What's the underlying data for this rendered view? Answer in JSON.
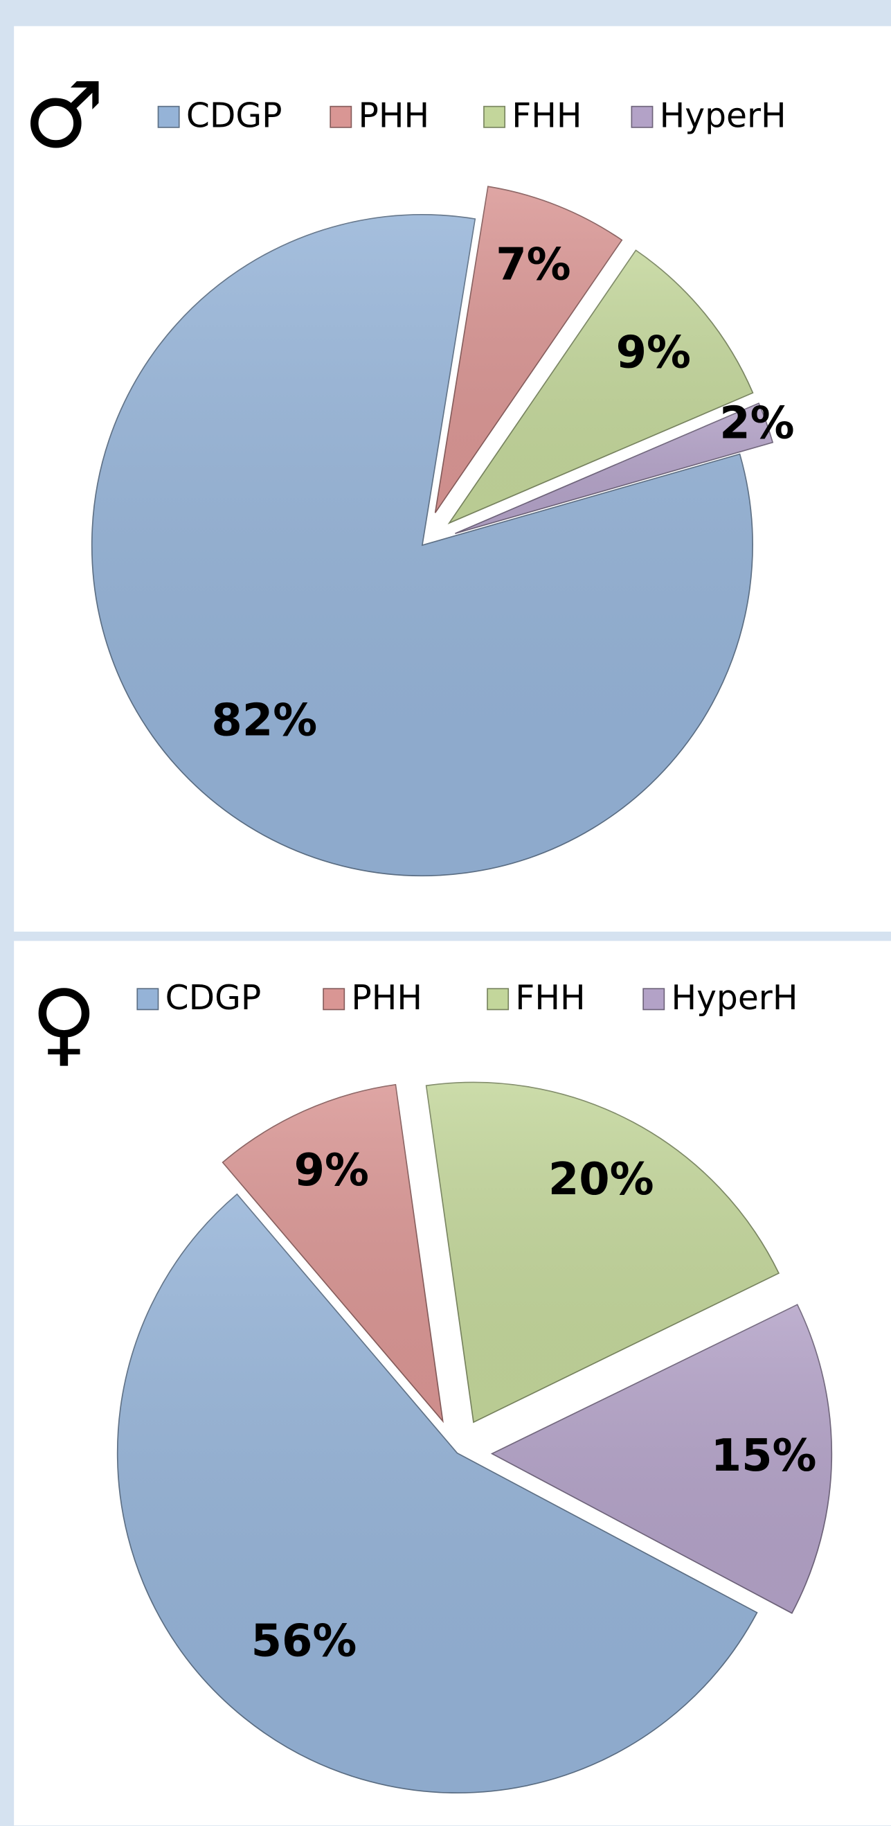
{
  "chart_data": [
    {
      "type": "pie",
      "title": "♂",
      "categories": [
        "CDGP",
        "PHH",
        "FHH",
        "HyperH"
      ],
      "values": [
        82,
        7,
        9,
        2
      ],
      "value_labels": [
        "82%",
        "7%",
        "9%",
        "2%"
      ],
      "colors": [
        "#95b3d7",
        "#d99694",
        "#c3d69b",
        "#b3a2c7"
      ]
    },
    {
      "type": "pie",
      "title": "♀",
      "categories": [
        "CDGP",
        "PHH",
        "FHH",
        "HyperH"
      ],
      "values": [
        56,
        9,
        20,
        15
      ],
      "value_labels": [
        "56%",
        "9%",
        "20%",
        "15%"
      ],
      "colors": [
        "#95b3d7",
        "#d99694",
        "#c3d69b",
        "#b3a2c7"
      ]
    }
  ]
}
